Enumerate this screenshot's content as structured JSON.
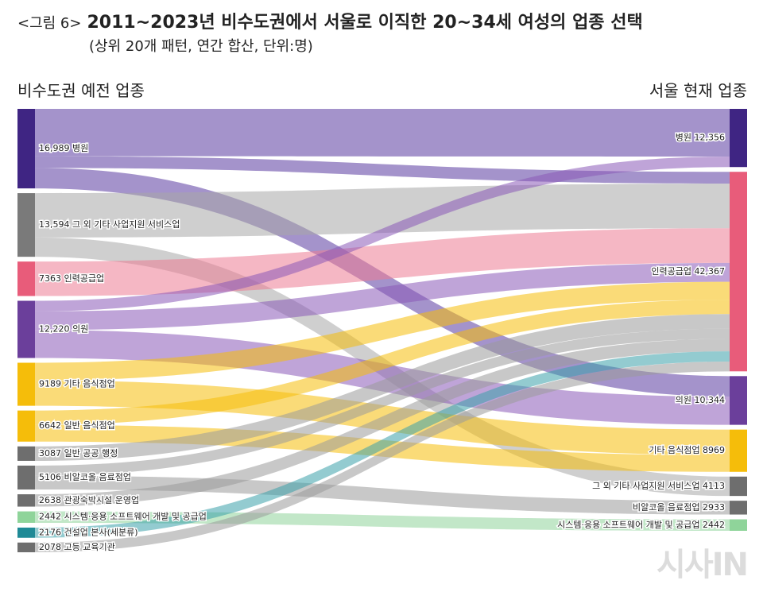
{
  "header": {
    "fig_label": "<그림 6>",
    "title": "2011~2023년 비수도권에서 서울로 이직한 20~34세 여성의 업종 선택",
    "subtitle": "(상위 20개 패턴, 연간 합산, 단위:명)"
  },
  "watermark": "시사IN",
  "colors": {
    "hospital": "#3f2583",
    "other_support": "#7a7a7a",
    "staffing": "#e85c7a",
    "clinic": "#6b3f9b",
    "other_food": "#f5bd0a",
    "general_food": "#f5bd0a",
    "small_grey": "#6e6e6e",
    "sw": "#8fd49a",
    "construction_hq": "#1f8a96"
  },
  "chart_data": {
    "type": "sankey",
    "left_heading": "비수도권 예전 업종",
    "right_heading": "서울 현재 업종",
    "left_nodes": [
      {
        "id": "L_hospital",
        "value": 16989,
        "name": "병원",
        "label": "16,989 병원",
        "color_key": "hospital"
      },
      {
        "id": "L_other_support",
        "value": 13594,
        "name": "그 외 기타 사업지원 서비스업",
        "label": "13,594 그 외 기타 사업지원 서비스업",
        "color_key": "other_support"
      },
      {
        "id": "L_staffing",
        "value": 7363,
        "name": "인력공급업",
        "label": "7363 인력공급업",
        "color_key": "staffing"
      },
      {
        "id": "L_clinic",
        "value": 12220,
        "name": "의원",
        "label": "12,220 의원",
        "color_key": "clinic"
      },
      {
        "id": "L_other_food",
        "value": 9189,
        "name": "기타 음식점업",
        "label": "9189 기타 음식점업",
        "color_key": "other_food"
      },
      {
        "id": "L_general_food",
        "value": 6642,
        "name": "일반 음식점업",
        "label": "6642 일반 음식점업",
        "color_key": "general_food"
      },
      {
        "id": "L_public_admin",
        "value": 3087,
        "name": "일반 공공 행정",
        "label": "3087 일반 공공 행정",
        "color_key": "small_grey"
      },
      {
        "id": "L_nonalc",
        "value": 5106,
        "name": "비알코올 음료점업",
        "label": "5106 비알코올 음료점업",
        "color_key": "small_grey"
      },
      {
        "id": "L_tourism",
        "value": 2638,
        "name": "관광숙박시설 운영업",
        "label": "2638 관광숙박시설 운영업",
        "color_key": "small_grey"
      },
      {
        "id": "L_sw",
        "value": 2442,
        "name": "시스템·응용 소프트웨어 개발 및 공급업",
        "label": "2442 시스템·응용 소프트웨어 개발 및 공급업",
        "color_key": "sw"
      },
      {
        "id": "L_construction",
        "value": 2176,
        "name": "건설업 본사(세분류)",
        "label": "2176 건설업 본사(세분류)",
        "color_key": "construction_hq"
      },
      {
        "id": "L_highschool",
        "value": 2078,
        "name": "고등 교육기관",
        "label": "2078 고등 교육기관",
        "color_key": "small_grey"
      }
    ],
    "right_nodes": [
      {
        "id": "R_hospital",
        "value": 12356,
        "name": "병원",
        "label": "병원 12,356",
        "color_key": "hospital"
      },
      {
        "id": "R_staffing",
        "value": 42367,
        "name": "인력공급업",
        "label": "인력공급업 42,367",
        "color_key": "staffing"
      },
      {
        "id": "R_clinic",
        "value": 10344,
        "name": "의원",
        "label": "의원 10,344",
        "color_key": "clinic"
      },
      {
        "id": "R_other_food",
        "value": 8969,
        "name": "기타 음식점업",
        "label": "기타 음식점업 8969",
        "color_key": "other_food"
      },
      {
        "id": "R_other_support",
        "value": 4113,
        "name": "그 외 기타 사업지원 서비스업",
        "label": "그 외 기타 사업지원 서비스업 4113",
        "color_key": "small_grey"
      },
      {
        "id": "R_nonalc",
        "value": 2933,
        "name": "비알코올 음료점업",
        "label": "비알코올 음료점업 2933",
        "color_key": "small_grey"
      },
      {
        "id": "R_sw",
        "value": 2442,
        "name": "시스템·응용 소프트웨어 개발 및 공급업",
        "label": "시스템·응용 소프트웨어 개발 및 공급업 2442",
        "color_key": "sw"
      }
    ],
    "links": [
      {
        "source": "L_hospital",
        "target": "R_hospital",
        "value": 10124
      },
      {
        "source": "L_hospital",
        "target": "R_staffing",
        "value": 2500
      },
      {
        "source": "L_hospital",
        "target": "R_clinic",
        "value": 4365
      },
      {
        "source": "L_other_support",
        "target": "R_staffing",
        "value": 9481
      },
      {
        "source": "L_other_support",
        "target": "R_other_support",
        "value": 4113
      },
      {
        "source": "L_staffing",
        "target": "R_staffing",
        "value": 7363
      },
      {
        "source": "L_clinic",
        "target": "R_hospital",
        "value": 2232
      },
      {
        "source": "L_clinic",
        "target": "R_staffing",
        "value": 4009
      },
      {
        "source": "L_clinic",
        "target": "R_clinic",
        "value": 5979
      },
      {
        "source": "L_other_food",
        "target": "R_staffing",
        "value": 3789
      },
      {
        "source": "L_other_food",
        "target": "R_other_food",
        "value": 5400
      },
      {
        "source": "L_general_food",
        "target": "R_staffing",
        "value": 3073
      },
      {
        "source": "L_general_food",
        "target": "R_other_food",
        "value": 3569
      },
      {
        "source": "L_public_admin",
        "target": "R_staffing",
        "value": 3087
      },
      {
        "source": "L_nonalc",
        "target": "R_staffing",
        "value": 2173
      },
      {
        "source": "L_nonalc",
        "target": "R_nonalc",
        "value": 2933
      },
      {
        "source": "L_tourism",
        "target": "R_staffing",
        "value": 2638
      },
      {
        "source": "L_sw",
        "target": "R_sw",
        "value": 2442
      },
      {
        "source": "L_construction",
        "target": "R_staffing",
        "value": 2176
      },
      {
        "source": "L_highschool",
        "target": "R_staffing",
        "value": 2078
      }
    ]
  }
}
